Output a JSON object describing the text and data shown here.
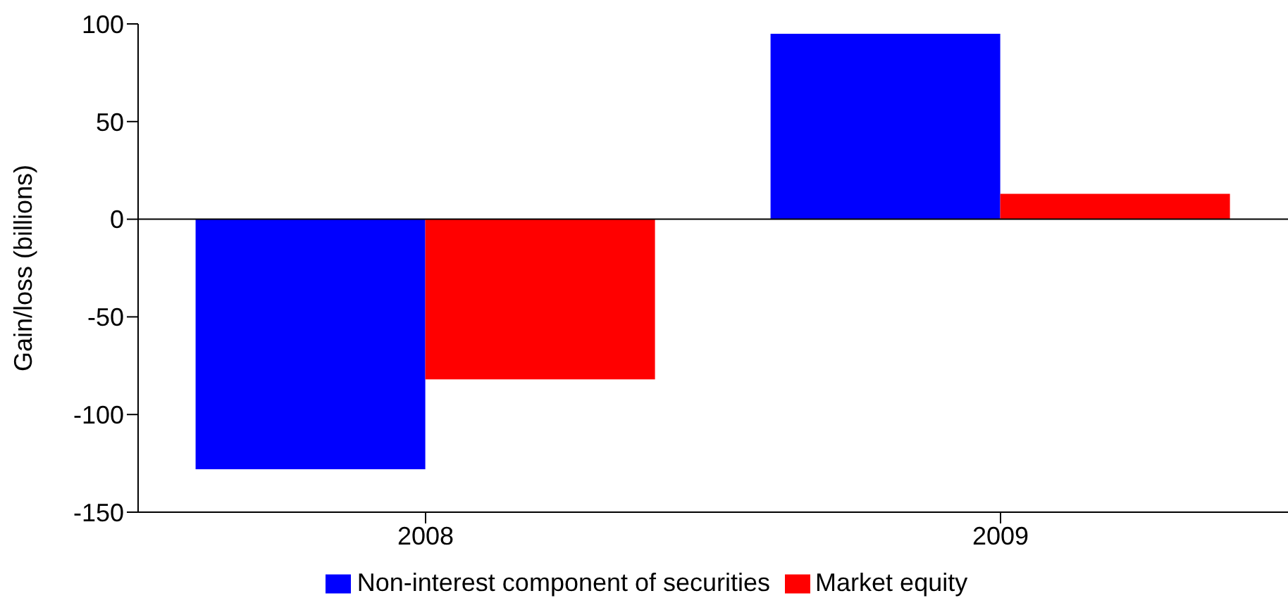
{
  "chart_data": {
    "type": "bar",
    "ylabel": "Gain/loss (billions)",
    "categories": [
      "2008",
      "2009"
    ],
    "series": [
      {
        "name": "Non-interest component of securities",
        "color": "#0000ff",
        "values": [
          -128,
          95
        ]
      },
      {
        "name": "Market equity",
        "color": "#ff0000",
        "values": [
          -82,
          13
        ]
      }
    ],
    "ylim": [
      -150,
      100
    ],
    "yticks": [
      -150,
      -100,
      -50,
      0,
      50,
      100
    ],
    "ref_lines": [
      {
        "axis": "y",
        "value": 0,
        "color": "#000000"
      }
    ],
    "grid": false,
    "legend": "bottom"
  }
}
